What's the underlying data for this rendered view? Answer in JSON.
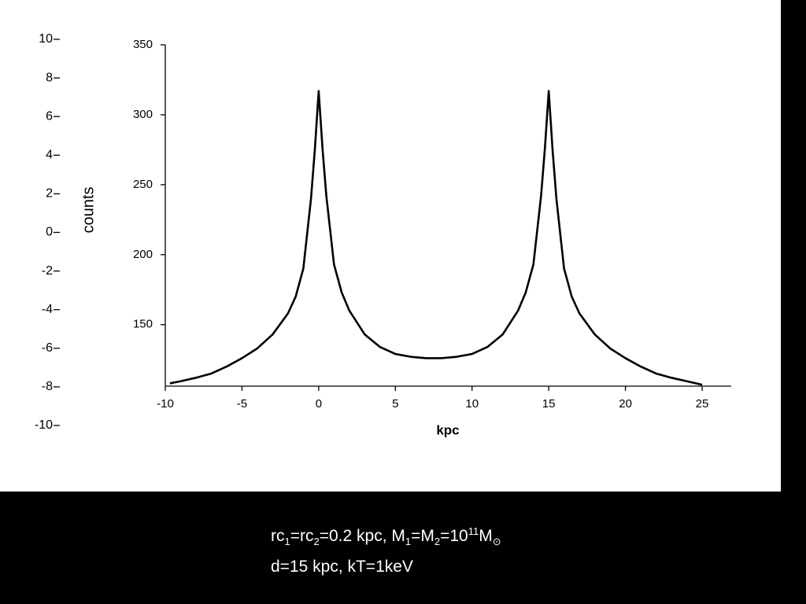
{
  "background_axis": {
    "yticks": [
      10,
      8,
      6,
      4,
      2,
      0,
      -2,
      -4,
      -6,
      -8,
      -10
    ]
  },
  "chart_data": {
    "type": "line",
    "x_label": "kpc",
    "y_label": "counts",
    "x": [
      -9.7,
      -9,
      -8,
      -7,
      -6,
      -5,
      -4,
      -3,
      -2,
      -1.5,
      -1,
      -0.5,
      -0.25,
      0,
      0.25,
      0.5,
      1,
      1.5,
      2,
      3,
      4,
      5,
      6,
      7,
      7.5,
      8,
      9,
      10,
      11,
      12,
      13,
      13.5,
      14,
      14.5,
      14.75,
      15,
      15.25,
      15.5,
      16,
      16.5,
      17,
      18,
      19,
      20,
      21,
      22,
      23,
      24,
      25
    ],
    "series": [
      {
        "name": "counts",
        "color": "#000000",
        "values": [
          108,
          109.5,
          112,
          115,
          120,
          126,
          133,
          143,
          158,
          170,
          190,
          240,
          275,
          317,
          276,
          242,
          193,
          173,
          160,
          143,
          134,
          129,
          127,
          126,
          126,
          126,
          127,
          129,
          134,
          143,
          160,
          173,
          193,
          242,
          276,
          317,
          275,
          240,
          190,
          170,
          158,
          143,
          133,
          126,
          120,
          115,
          112,
          109.5,
          107
        ]
      }
    ],
    "xlim": [
      -10,
      26.9
    ],
    "ylim": [
      106,
      350
    ],
    "xticks": [
      -10,
      -5,
      0,
      5,
      10,
      15,
      20,
      25
    ],
    "yticks": [
      150,
      200,
      250,
      300,
      350
    ]
  },
  "caption": {
    "line1": [
      {
        "text": "rc"
      },
      {
        "text": "1",
        "style": "sub"
      },
      {
        "text": "=rc"
      },
      {
        "text": "2",
        "style": "sub"
      },
      {
        "text": "=0.2 kpc, M"
      },
      {
        "text": "1",
        "style": "sub"
      },
      {
        "text": "=M"
      },
      {
        "text": "2",
        "style": "sub"
      },
      {
        "text": "=10"
      },
      {
        "text": "11",
        "style": "sup"
      },
      {
        "text": "M"
      },
      {
        "text": "⊙",
        "style": "sub"
      }
    ],
    "line2": "d=15 kpc, kT=1keV"
  }
}
